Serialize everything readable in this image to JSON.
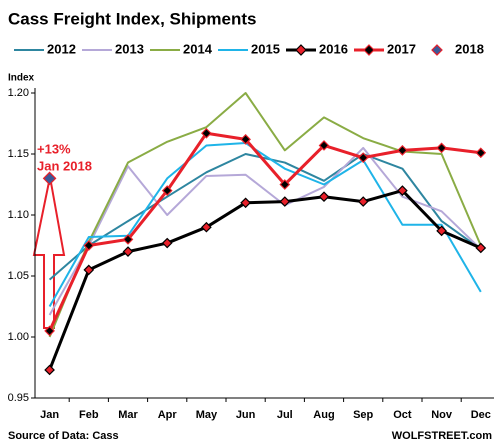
{
  "chart_data": {
    "type": "line",
    "title": "Cass Freight Index,  Shipments",
    "y_label": "Index",
    "source": "Source of Data: Cass",
    "credit": "WOLFSTREET.com",
    "annotation": [
      "+13%",
      "Jan 2018"
    ],
    "categories": [
      "Jan",
      "Feb",
      "Mar",
      "Apr",
      "May",
      "Jun",
      "Jul",
      "Aug",
      "Sep",
      "Oct",
      "Nov",
      "Dec"
    ],
    "ylim": [
      0.95,
      1.2
    ],
    "yticks": [
      0.95,
      {
        "value": 1.0,
        "label": "1.00"
      },
      1.05,
      {
        "value": 1.1,
        "label": "1.10"
      },
      1.15,
      {
        "value": 1.2,
        "label": "1.20"
      }
    ],
    "series": [
      {
        "name": "2012",
        "color": "#2e86a0",
        "values": [
          1.047,
          1.075,
          1.095,
          1.115,
          1.135,
          1.15,
          1.143,
          1.128,
          1.15,
          1.138,
          1.095,
          1.072
        ]
      },
      {
        "name": "2013",
        "color": "#b5a8d8",
        "values": [
          1.018,
          1.075,
          1.14,
          1.1,
          1.132,
          1.133,
          1.108,
          1.123,
          1.155,
          1.115,
          1.103,
          1.072
        ]
      },
      {
        "name": "2014",
        "color": "#8aac45",
        "values": [
          1.0,
          1.078,
          1.143,
          1.16,
          1.172,
          1.2,
          1.153,
          1.18,
          1.163,
          1.152,
          1.15,
          1.075
        ]
      },
      {
        "name": "2015",
        "color": "#1fb4e8",
        "values": [
          1.025,
          1.082,
          1.083,
          1.13,
          1.157,
          1.159,
          1.138,
          1.125,
          1.145,
          1.092,
          1.092,
          1.037
        ]
      },
      {
        "name": "2016",
        "color": "#000000",
        "marker_color": "#e8202a",
        "values": [
          0.973,
          1.055,
          1.07,
          1.077,
          1.09,
          1.11,
          1.111,
          1.115,
          1.111,
          1.12,
          1.087,
          1.073
        ]
      },
      {
        "name": "2017",
        "color": "#e8202a",
        "marker_color": "#000000",
        "values": [
          1.005,
          1.075,
          1.08,
          1.12,
          1.167,
          1.162,
          1.125,
          1.157,
          1.147,
          1.153,
          1.155,
          1.151
        ]
      },
      {
        "name": "2018",
        "color": "#e8202a",
        "marker_color": "#3b5998",
        "values": [
          1.13,
          null,
          null,
          null,
          null,
          null,
          null,
          null,
          null,
          null,
          null,
          null
        ]
      }
    ]
  }
}
